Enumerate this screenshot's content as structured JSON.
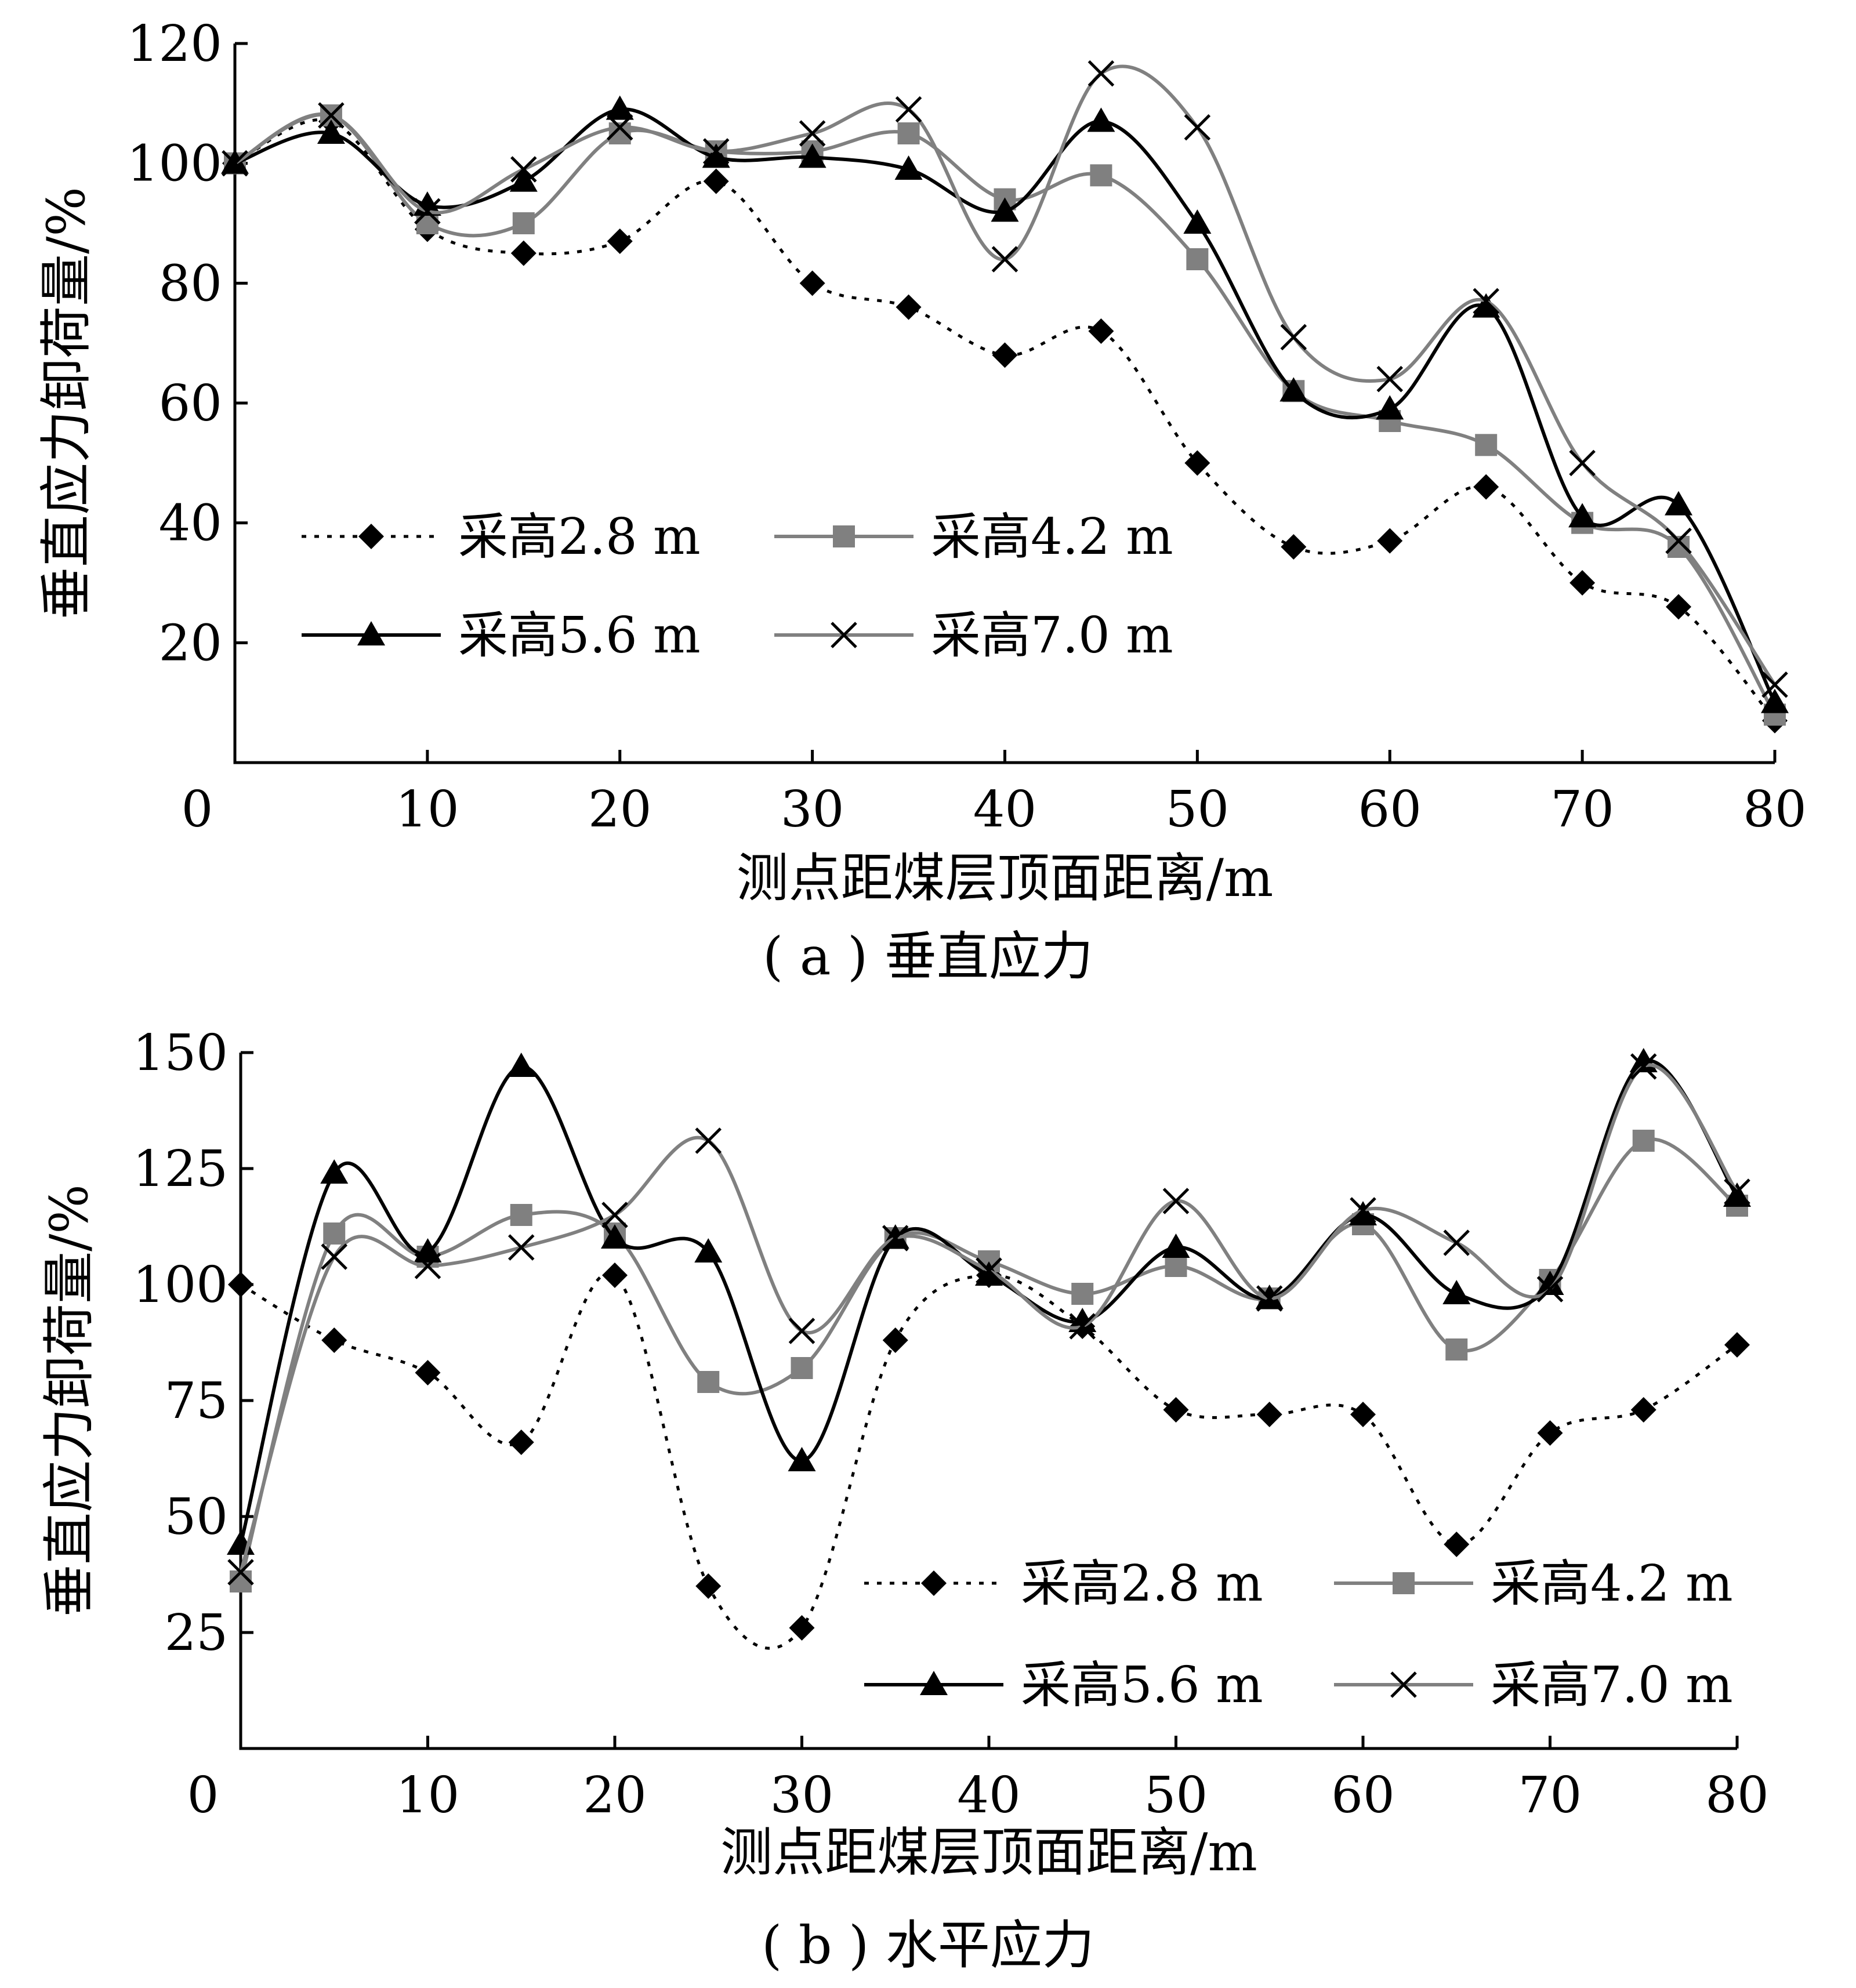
{
  "chart_data": [
    {
      "type": "line",
      "caption": "( a ) 垂直应力",
      "xlabel": "测点距煤层顶面距离/m",
      "ylabel": "垂直应力卸荷量/%",
      "xlim": [
        0,
        80
      ],
      "ylim": [
        0,
        120
      ],
      "xticks": [
        0,
        10,
        20,
        30,
        40,
        50,
        60,
        70,
        80
      ],
      "yticks": [
        20,
        40,
        60,
        80,
        100,
        120
      ],
      "grid": false,
      "legend_position": "bottom-left",
      "x": [
        0,
        5,
        10,
        15,
        20,
        25,
        30,
        35,
        40,
        45,
        50,
        55,
        60,
        65,
        70,
        75,
        80
      ],
      "series": [
        {
          "name": "采高2.8 m",
          "marker": "diamond",
          "line": "dotted",
          "color": "#000000",
          "values": [
            100,
            107,
            89,
            85,
            87,
            97,
            80,
            76,
            68,
            72,
            50,
            36,
            37,
            46,
            30,
            26,
            7
          ]
        },
        {
          "name": "采高4.2 m",
          "marker": "square",
          "line": "solid",
          "color": "#808080",
          "values": [
            100,
            108,
            90,
            90,
            105,
            102,
            102,
            105,
            94,
            98,
            84,
            62,
            57,
            53,
            40,
            36,
            8
          ]
        },
        {
          "name": "采高5.6 m",
          "marker": "triangle",
          "line": "solid",
          "color": "#000000",
          "values": [
            100,
            105,
            93,
            97,
            109,
            101,
            101,
            99,
            92,
            107,
            90,
            62,
            59,
            76,
            41,
            43,
            10
          ]
        },
        {
          "name": "采高7.0 m",
          "marker": "x",
          "line": "solid",
          "color": "#808080",
          "values": [
            100,
            108,
            92,
            99,
            106,
            102,
            105,
            109,
            84,
            115,
            106,
            71,
            64,
            77,
            50,
            37,
            13
          ]
        }
      ]
    },
    {
      "type": "line",
      "caption": "( b ) 水平应力",
      "xlabel": "测点距煤层顶面距离/m",
      "ylabel": "垂直应力卸荷量/%",
      "xlim": [
        0,
        80
      ],
      "ylim": [
        0,
        150
      ],
      "xticks": [
        0,
        10,
        20,
        30,
        40,
        50,
        60,
        70,
        80
      ],
      "yticks": [
        25,
        50,
        75,
        100,
        125,
        150
      ],
      "grid": false,
      "legend_position": "bottom-right",
      "x": [
        0,
        5,
        10,
        15,
        20,
        25,
        30,
        35,
        40,
        45,
        50,
        55,
        60,
        65,
        70,
        75,
        80
      ],
      "series": [
        {
          "name": "采高2.8 m",
          "marker": "diamond",
          "line": "dotted",
          "color": "#000000",
          "values": [
            100,
            88,
            81,
            66,
            102,
            35,
            26,
            88,
            102,
            91,
            73,
            72,
            72,
            44,
            68,
            73,
            87
          ]
        },
        {
          "name": "采高4.2 m",
          "marker": "square",
          "line": "solid",
          "color": "#808080",
          "values": [
            36,
            111,
            106,
            115,
            111,
            79,
            82,
            110,
            105,
            98,
            104,
            97,
            113,
            86,
            101,
            131,
            117
          ]
        },
        {
          "name": "采高5.6 m",
          "marker": "triangle",
          "line": "solid",
          "color": "#000000",
          "values": [
            44,
            124,
            107,
            147,
            110,
            107,
            62,
            110,
            102,
            92,
            108,
            97,
            115,
            98,
            100,
            148,
            119
          ]
        },
        {
          "name": "采高7.0 m",
          "marker": "x",
          "line": "solid",
          "color": "#808080",
          "values": [
            38,
            106,
            104,
            108,
            115,
            131,
            90,
            110,
            103,
            91,
            118,
            97,
            116,
            109,
            99,
            147,
            120
          ]
        }
      ]
    }
  ]
}
